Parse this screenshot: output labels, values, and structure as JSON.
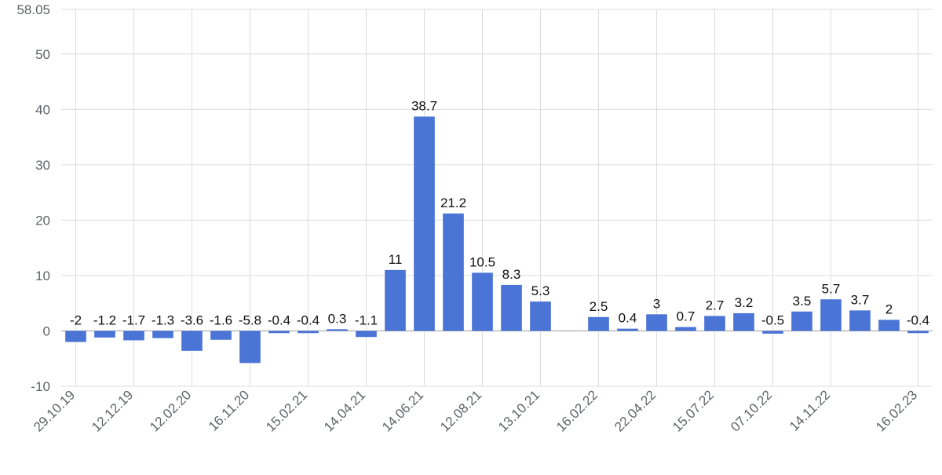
{
  "chart_data": {
    "type": "bar",
    "title": "",
    "xlabel": "",
    "ylabel": "",
    "ylim": [
      -10,
      58.05
    ],
    "yticks": [
      -10,
      0,
      10,
      20,
      30,
      40,
      50,
      58.05
    ],
    "ytick_labels": [
      "-10",
      "0",
      "10",
      "20",
      "30",
      "40",
      "50",
      "58.05"
    ],
    "grid": true,
    "legend": "none",
    "bar_color": "#4a74d6",
    "values": [
      -2,
      -1.2,
      -1.7,
      -1.3,
      -3.6,
      -1.6,
      -5.8,
      -0.4,
      -0.4,
      0.3,
      -1.1,
      11,
      38.7,
      21.2,
      10.5,
      8.3,
      5.3,
      null,
      2.5,
      0.4,
      3,
      0.7,
      2.7,
      3.2,
      -0.5,
      3.5,
      5.7,
      3.7,
      2,
      -0.4
    ],
    "data_labels": [
      "-2",
      "-1.2",
      "-1.7",
      "-1.3",
      "-3.6",
      "-1.6",
      "-5.8",
      "-0.4",
      "-0.4",
      "0.3",
      "-1.1",
      "11",
      "38.7",
      "21.2",
      "10.5",
      "8.3",
      "5.3",
      "",
      "2.5",
      "0.4",
      "3",
      "0.7",
      "2.7",
      "3.2",
      "-0.5",
      "3.5",
      "5.7",
      "3.7",
      "2",
      "-0.4"
    ],
    "xtick_labels": [
      {
        "index": 0,
        "label": "29.10.19"
      },
      {
        "index": 2,
        "label": "12.12.19"
      },
      {
        "index": 4,
        "label": "12.02.20"
      },
      {
        "index": 6,
        "label": "16.11.20"
      },
      {
        "index": 8,
        "label": "15.02.21"
      },
      {
        "index": 10,
        "label": "14.04.21"
      },
      {
        "index": 12,
        "label": "14.06.21"
      },
      {
        "index": 14,
        "label": "12.08.21"
      },
      {
        "index": 16,
        "label": "13.10.21"
      },
      {
        "index": 18,
        "label": "16.02.22"
      },
      {
        "index": 20,
        "label": "22.04.22"
      },
      {
        "index": 22,
        "label": "15.07.22"
      },
      {
        "index": 24,
        "label": "07.10.22"
      },
      {
        "index": 26,
        "label": "14.11.22"
      },
      {
        "index": 29,
        "label": "16.02.23"
      }
    ]
  }
}
